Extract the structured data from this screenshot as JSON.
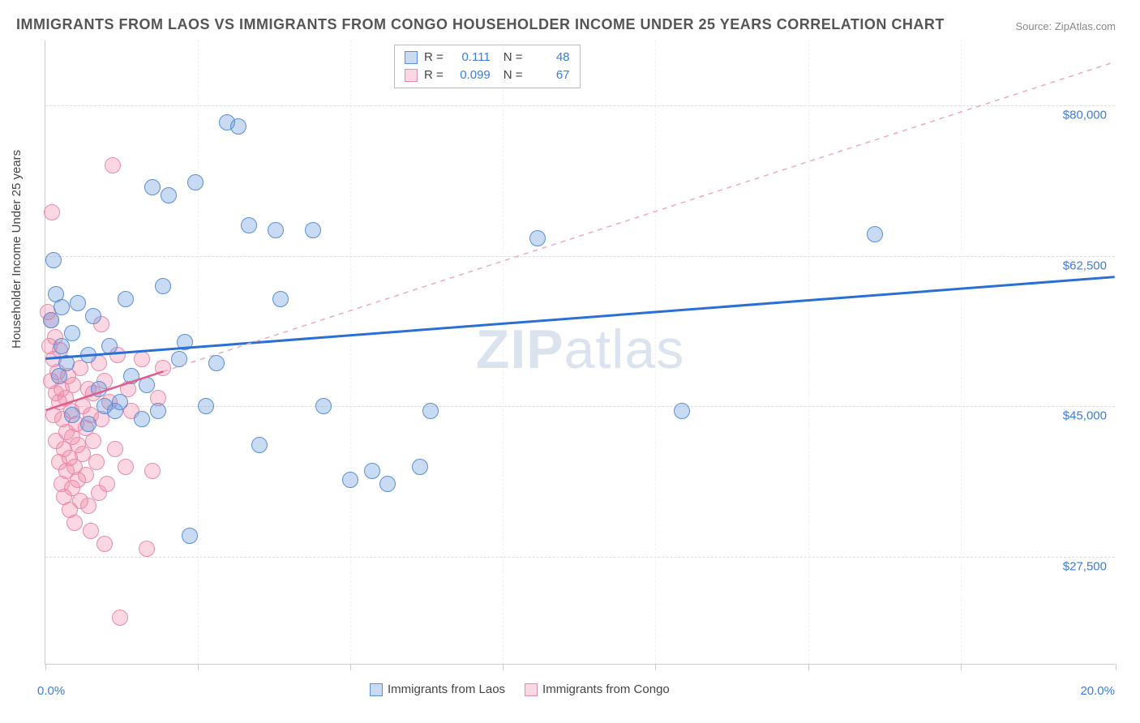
{
  "title": "IMMIGRANTS FROM LAOS VS IMMIGRANTS FROM CONGO HOUSEHOLDER INCOME UNDER 25 YEARS CORRELATION CHART",
  "source": "Source: ZipAtlas.com",
  "watermark_a": "ZIP",
  "watermark_b": "atlas",
  "y_axis_title": "Householder Income Under 25 years",
  "chart": {
    "type": "scatter",
    "xlim": [
      0,
      20
    ],
    "ylim": [
      15000,
      87500
    ],
    "x_min_label": "0.0%",
    "x_max_label": "20.0%",
    "y_ticks": [
      27500,
      45000,
      62500,
      80000
    ],
    "y_tick_labels": [
      "$27,500",
      "$45,000",
      "$62,500",
      "$80,000"
    ],
    "x_tick_positions": [
      0,
      2.85,
      5.7,
      8.55,
      11.4,
      14.25,
      17.1,
      20
    ],
    "grid_color": "#dddddd",
    "background_color": "#ffffff",
    "point_radius": 10,
    "series": [
      {
        "name": "Immigrants from Laos",
        "color_fill": "rgba(100,150,220,0.35)",
        "color_stroke": "#5a8fd6",
        "R": "0.111",
        "N": "48",
        "trend": {
          "x1": 0,
          "y1": 50500,
          "x2": 20,
          "y2": 60000,
          "color": "#2a6fd6",
          "width": 3,
          "dash": "none"
        },
        "trend_ext": null,
        "points": [
          [
            0.1,
            55000
          ],
          [
            0.2,
            58000
          ],
          [
            0.3,
            52000
          ],
          [
            0.3,
            56500
          ],
          [
            0.4,
            50000
          ],
          [
            0.5,
            53500
          ],
          [
            0.5,
            44000
          ],
          [
            0.6,
            57000
          ],
          [
            0.8,
            51000
          ],
          [
            0.8,
            43000
          ],
          [
            0.9,
            55500
          ],
          [
            1.0,
            47000
          ],
          [
            1.1,
            45000
          ],
          [
            1.2,
            52000
          ],
          [
            1.3,
            44500
          ],
          [
            1.4,
            45500
          ],
          [
            1.5,
            57500
          ],
          [
            1.6,
            48500
          ],
          [
            1.8,
            43500
          ],
          [
            1.9,
            47500
          ],
          [
            2.0,
            70500
          ],
          [
            2.2,
            59000
          ],
          [
            2.3,
            69500
          ],
          [
            2.5,
            50500
          ],
          [
            2.6,
            52500
          ],
          [
            2.7,
            30000
          ],
          [
            2.8,
            71000
          ],
          [
            3.0,
            45000
          ],
          [
            3.2,
            50000
          ],
          [
            3.4,
            78000
          ],
          [
            3.6,
            77500
          ],
          [
            3.8,
            66000
          ],
          [
            4.0,
            40500
          ],
          [
            4.3,
            65500
          ],
          [
            4.4,
            57500
          ],
          [
            5.0,
            65500
          ],
          [
            5.2,
            45000
          ],
          [
            5.7,
            36500
          ],
          [
            6.1,
            37500
          ],
          [
            6.4,
            36000
          ],
          [
            7.0,
            38000
          ],
          [
            7.2,
            44500
          ],
          [
            9.2,
            64500
          ],
          [
            11.9,
            44500
          ],
          [
            15.5,
            65000
          ],
          [
            0.15,
            62000
          ],
          [
            0.25,
            48500
          ],
          [
            2.1,
            44500
          ]
        ]
      },
      {
        "name": "Immigrants from Congo",
        "color_fill": "rgba(240,140,170,0.35)",
        "color_stroke": "#e98bad",
        "R": "0.099",
        "N": "67",
        "trend": {
          "x1": 0,
          "y1": 44500,
          "x2": 2.2,
          "y2": 49000,
          "color": "#e05c8a",
          "width": 2.5,
          "dash": "none"
        },
        "trend_ext": {
          "x1": 2.2,
          "y1": 49000,
          "x2": 20,
          "y2": 85000,
          "color": "#f0a8c0",
          "width": 1.5,
          "dash": "6,6"
        },
        "points": [
          [
            0.05,
            56000
          ],
          [
            0.08,
            52000
          ],
          [
            0.1,
            55000
          ],
          [
            0.1,
            48000
          ],
          [
            0.12,
            67500
          ],
          [
            0.15,
            50500
          ],
          [
            0.15,
            44000
          ],
          [
            0.18,
            53000
          ],
          [
            0.2,
            46500
          ],
          [
            0.2,
            41000
          ],
          [
            0.22,
            49000
          ],
          [
            0.25,
            45500
          ],
          [
            0.25,
            38500
          ],
          [
            0.28,
            51500
          ],
          [
            0.3,
            47000
          ],
          [
            0.3,
            36000
          ],
          [
            0.32,
            43500
          ],
          [
            0.35,
            40000
          ],
          [
            0.35,
            34500
          ],
          [
            0.38,
            46000
          ],
          [
            0.4,
            42000
          ],
          [
            0.4,
            37500
          ],
          [
            0.42,
            48500
          ],
          [
            0.45,
            39000
          ],
          [
            0.45,
            33000
          ],
          [
            0.48,
            44500
          ],
          [
            0.5,
            41500
          ],
          [
            0.5,
            35500
          ],
          [
            0.52,
            47500
          ],
          [
            0.55,
            38000
          ],
          [
            0.55,
            31500
          ],
          [
            0.58,
            43000
          ],
          [
            0.6,
            40500
          ],
          [
            0.6,
            36500
          ],
          [
            0.65,
            49500
          ],
          [
            0.65,
            34000
          ],
          [
            0.7,
            45000
          ],
          [
            0.7,
            39500
          ],
          [
            0.75,
            42500
          ],
          [
            0.75,
            37000
          ],
          [
            0.8,
            47000
          ],
          [
            0.8,
            33500
          ],
          [
            0.85,
            44000
          ],
          [
            0.85,
            30500
          ],
          [
            0.9,
            46500
          ],
          [
            0.9,
            41000
          ],
          [
            0.95,
            38500
          ],
          [
            1.0,
            50000
          ],
          [
            1.0,
            35000
          ],
          [
            1.05,
            43500
          ],
          [
            1.1,
            48000
          ],
          [
            1.1,
            29000
          ],
          [
            1.15,
            36000
          ],
          [
            1.2,
            45500
          ],
          [
            1.25,
            73000
          ],
          [
            1.3,
            40000
          ],
          [
            1.35,
            51000
          ],
          [
            1.4,
            20500
          ],
          [
            1.5,
            38000
          ],
          [
            1.55,
            47000
          ],
          [
            1.6,
            44500
          ],
          [
            1.8,
            50500
          ],
          [
            1.9,
            28500
          ],
          [
            2.0,
            37500
          ],
          [
            2.1,
            46000
          ],
          [
            2.2,
            49500
          ],
          [
            1.05,
            54500
          ]
        ]
      }
    ]
  },
  "legend_bottom": {
    "label_a": "Immigrants from Laos",
    "label_b": "Immigrants from Congo"
  }
}
